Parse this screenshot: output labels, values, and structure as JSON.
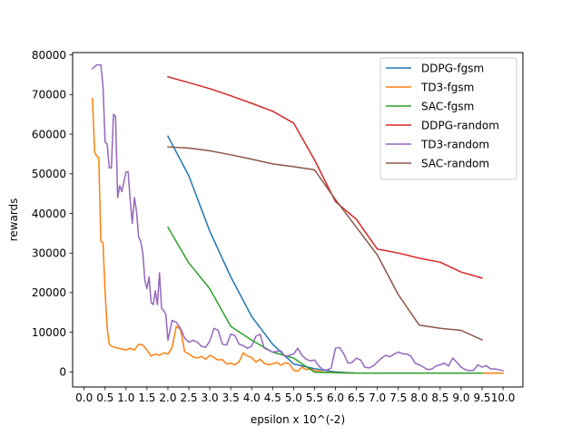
{
  "chart_data": {
    "type": "line",
    "title": "",
    "xlabel": "epsilon x 10^(-2)",
    "ylabel": "rewards",
    "xlim": [
      -0.275,
      10.475
    ],
    "ylim": [
      -3800,
      80600
    ],
    "x_ticks": [
      0.0,
      0.5,
      1.0,
      1.5,
      2.0,
      2.5,
      3.0,
      3.5,
      4.0,
      4.5,
      5.0,
      5.5,
      6.0,
      6.5,
      7.0,
      7.5,
      8.0,
      8.5,
      9.0,
      9.5,
      10.0
    ],
    "x_tick_labels": [
      "0.0",
      "0.5",
      "1.0",
      "1.5",
      "2.0",
      "2.5",
      "3.0",
      "3.5",
      "4.0",
      "4.5",
      "5.0",
      "5.5",
      "6.0",
      "6.5",
      "7.0",
      "7.5",
      "8.0",
      "8.5",
      "9.0",
      "9.5",
      "10.0"
    ],
    "y_ticks": [
      0,
      10000,
      20000,
      30000,
      40000,
      50000,
      60000,
      70000,
      80000
    ],
    "y_tick_labels": [
      "0",
      "10000",
      "20000",
      "30000",
      "40000",
      "50000",
      "60000",
      "70000",
      "80000"
    ],
    "grid": false,
    "legend_position": "top-right",
    "series": [
      {
        "name": "DDPG-fgsm",
        "color": "#1f77b4",
        "x": [
          2.0,
          2.5,
          3.0,
          3.5,
          4.0,
          4.5,
          5.0,
          5.5,
          6.0,
          6.5,
          7.0,
          7.5,
          8.0,
          8.5,
          9.0,
          9.5
        ],
        "y": [
          59500,
          49500,
          35500,
          24000,
          14000,
          7000,
          2000,
          800,
          0,
          -300,
          -300,
          -300,
          -300,
          -300,
          -300,
          -300
        ]
      },
      {
        "name": "TD3-fgsm",
        "color": "#ff7f0e",
        "x": [
          0.2,
          0.25,
          0.3,
          0.35,
          0.4,
          0.45,
          0.5,
          0.55,
          0.6,
          0.65,
          0.7,
          0.8,
          0.9,
          1.0,
          1.1,
          1.2,
          1.3,
          1.4,
          1.5,
          1.6,
          1.7,
          1.8,
          1.9,
          2.0,
          2.1,
          2.2,
          2.3,
          2.4,
          2.5,
          2.6,
          2.7,
          2.8,
          2.9,
          3.0,
          3.1,
          3.2,
          3.3,
          3.4,
          3.5,
          3.6,
          3.7,
          3.8,
          3.9,
          4.0,
          4.1,
          4.2,
          4.3,
          4.4,
          4.5,
          4.6,
          4.7,
          4.8,
          4.9,
          5.0,
          5.1,
          5.2,
          5.3,
          5.4,
          5.5,
          5.6,
          5.7,
          5.8,
          5.9,
          6.0,
          6.5,
          7.0,
          7.5,
          8.0,
          8.5,
          9.0,
          9.5,
          10.0
        ],
        "y": [
          69000,
          55500,
          54500,
          54000,
          33000,
          32500,
          20000,
          11000,
          7000,
          6500,
          6300,
          6000,
          5800,
          5500,
          6000,
          5500,
          7000,
          6800,
          5500,
          4000,
          4500,
          4200,
          4800,
          4500,
          6200,
          11500,
          10800,
          5200,
          4500,
          3800,
          3500,
          3900,
          3200,
          4200,
          3600,
          3000,
          3100,
          2000,
          2200,
          1800,
          2600,
          4800,
          4000,
          3600,
          2500,
          3200,
          2200,
          1800,
          2000,
          2400,
          1700,
          2300,
          2000,
          400,
          200,
          1200,
          600,
          800,
          300,
          200,
          0,
          -200,
          0,
          -200,
          -300,
          -300,
          -300,
          -300,
          -300,
          -300,
          -300,
          -300
        ]
      },
      {
        "name": "SAC-fgsm",
        "color": "#2ca02c",
        "x": [
          2.0,
          2.5,
          3.0,
          3.5,
          4.0,
          4.5,
          5.0,
          5.5,
          6.0,
          6.5,
          7.0,
          7.5,
          8.0,
          8.5,
          9.0,
          9.5
        ],
        "y": [
          36500,
          27500,
          21000,
          11500,
          8000,
          5000,
          3500,
          -100,
          -200,
          -300,
          -300,
          -300,
          -300,
          -300,
          -300,
          -300
        ]
      },
      {
        "name": "DDPG-random",
        "color": "#d62728",
        "x": [
          2.0,
          2.5,
          3.0,
          3.5,
          4.0,
          4.5,
          5.0,
          5.5,
          6.0,
          6.5,
          7.0,
          7.5,
          8.0,
          8.5,
          9.0,
          9.5
        ],
        "y": [
          74500,
          73000,
          71500,
          69700,
          67800,
          65800,
          62800,
          53500,
          43000,
          38500,
          31000,
          30000,
          28700,
          27700,
          25200,
          23700
        ]
      },
      {
        "name": "TD3-random",
        "color": "#9467bd",
        "x": [
          0.2,
          0.3,
          0.4,
          0.45,
          0.5,
          0.55,
          0.6,
          0.65,
          0.7,
          0.75,
          0.8,
          0.85,
          0.9,
          1.0,
          1.05,
          1.1,
          1.15,
          1.2,
          1.25,
          1.3,
          1.35,
          1.4,
          1.45,
          1.5,
          1.55,
          1.6,
          1.65,
          1.7,
          1.75,
          1.8,
          1.85,
          1.9,
          1.95,
          2.0,
          2.1,
          2.2,
          2.3,
          2.4,
          2.5,
          2.6,
          2.7,
          2.8,
          2.9,
          3.0,
          3.1,
          3.2,
          3.3,
          3.4,
          3.5,
          3.6,
          3.7,
          3.8,
          3.9,
          4.0,
          4.1,
          4.2,
          4.3,
          4.4,
          4.5,
          4.6,
          4.7,
          4.8,
          4.9,
          5.0,
          5.1,
          5.2,
          5.3,
          5.4,
          5.5,
          5.6,
          5.7,
          5.8,
          5.9,
          6.0,
          6.1,
          6.2,
          6.3,
          6.4,
          6.5,
          6.6,
          6.7,
          6.8,
          6.9,
          7.0,
          7.1,
          7.2,
          7.3,
          7.4,
          7.5,
          7.6,
          7.7,
          7.8,
          7.9,
          8.0,
          8.1,
          8.2,
          8.3,
          8.4,
          8.5,
          8.6,
          8.7,
          8.8,
          8.9,
          9.0,
          9.1,
          9.2,
          9.3,
          9.4,
          9.5,
          9.6,
          9.7,
          9.8,
          9.9,
          10.0
        ],
        "y": [
          76500,
          77500,
          77500,
          72000,
          58000,
          57500,
          51500,
          51500,
          65000,
          64500,
          44000,
          47000,
          45500,
          50500,
          50500,
          43500,
          37500,
          44000,
          40500,
          34000,
          33000,
          30000,
          23000,
          21000,
          24000,
          17500,
          17000,
          20500,
          17000,
          25000,
          16000,
          15500,
          14500,
          8000,
          13000,
          12500,
          11000,
          8500,
          7500,
          8000,
          7500,
          6500,
          6200,
          7800,
          11000,
          10500,
          7000,
          6800,
          9500,
          9200,
          7000,
          6600,
          6000,
          6500,
          9000,
          9500,
          6000,
          5500,
          5000,
          5200,
          5300,
          3800,
          4200,
          4500,
          6000,
          4200,
          3200,
          2800,
          3000,
          1500,
          600,
          500,
          1000,
          6000,
          6200,
          4500,
          2200,
          2400,
          3500,
          3000,
          1200,
          1000,
          1500,
          2500,
          3500,
          4200,
          3800,
          4500,
          5000,
          4600,
          4500,
          4000,
          2200,
          1800,
          1200,
          600,
          700,
          1500,
          1800,
          2200,
          1500,
          3500,
          2400,
          1200,
          600,
          300,
          400,
          1800,
          1200,
          1600,
          800,
          700,
          600,
          300
        ]
      },
      {
        "name": "SAC-random",
        "color": "#8c564b",
        "x": [
          2.0,
          2.5,
          3.0,
          3.5,
          4.0,
          4.5,
          5.0,
          5.5,
          6.0,
          6.5,
          7.0,
          7.5,
          8.0,
          8.5,
          9.0,
          9.5
        ],
        "y": [
          56800,
          56500,
          55800,
          54800,
          53700,
          52500,
          51800,
          51000,
          43500,
          36500,
          29500,
          19500,
          11800,
          11000,
          10500,
          8100
        ]
      }
    ]
  }
}
